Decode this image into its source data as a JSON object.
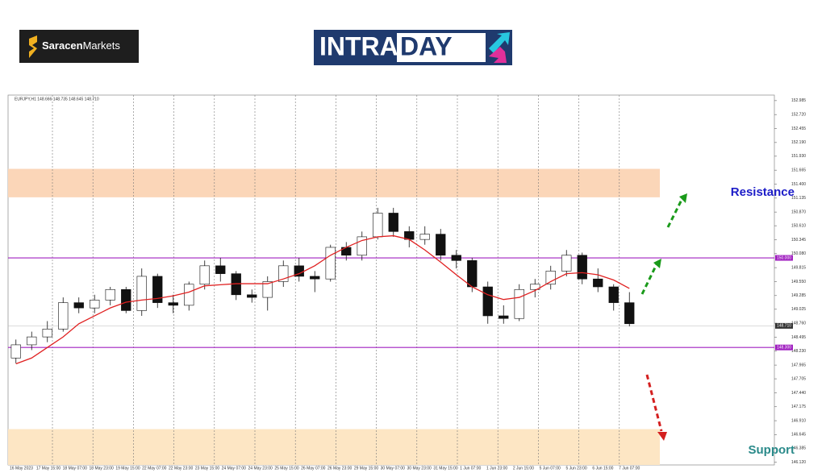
{
  "header": {
    "brand_bold": "Saracen",
    "brand_light": "Markets",
    "logo_left": "INTRA",
    "logo_right": "DAY"
  },
  "chart_data": {
    "type": "candlestick",
    "title": "EURJPY,H1  148.666 148.735 148.645 148.710",
    "ylim": [
      146.07,
      153.09
    ],
    "yticks": [
      152.985,
      {
        "value": 152.72,
        "label": "152.720"
      },
      152.455,
      {
        "value": 152.19,
        "label": "152.190"
      },
      {
        "value": 151.93,
        "label": "151.930"
      },
      151.665,
      {
        "value": 151.4,
        "label": "151.400"
      },
      151.135,
      {
        "value": 150.87,
        "label": "150.870"
      },
      {
        "value": 150.61,
        "label": "150.610"
      },
      150.345,
      {
        "value": 150.08,
        "label": "150.080"
      },
      149.815,
      {
        "value": 149.55,
        "label": "149.550"
      },
      149.285,
      149.025,
      {
        "value": 148.76,
        "label": "148.760"
      },
      148.495,
      {
        "value": 148.23,
        "label": "148.230"
      },
      147.965,
      147.705,
      {
        "value": 147.44,
        "label": "147.440"
      },
      147.175,
      {
        "value": 146.91,
        "label": "146.910"
      },
      146.645,
      146.385,
      {
        "value": 146.12,
        "label": "146.120"
      }
    ],
    "time_labels": [
      "16 May 2023",
      "17 May 15:00",
      "18 May 07:00",
      "18 May 23:00",
      "19 May 15:00",
      "22 May 07:00",
      "22 May 23:00",
      "23 May 15:00",
      "24 May 07:00",
      "24 May 23:00",
      "25 May 15:00",
      "26 May 07:00",
      "26 May 23:00",
      "29 May 15:00",
      "30 May 07:00",
      "30 May 23:00",
      "31 May 15:00",
      "1 Jun 07:00",
      "1 Jun 23:00",
      "2 Jun 15:00",
      "5 Jun 07:00",
      "5 Jun 23:00",
      "6 Jun 15:00",
      "7 Jun 07:00"
    ],
    "open": [
      148.1,
      148.35,
      148.5,
      148.65,
      149.15,
      149.05,
      149.2,
      149.4,
      149.0,
      149.65,
      149.15,
      149.1,
      149.5,
      149.85,
      149.7,
      149.3,
      149.25,
      149.55,
      149.85,
      149.65,
      149.6,
      150.2,
      150.05,
      150.4,
      150.85,
      150.5,
      150.35,
      150.45,
      150.05,
      149.95,
      149.45,
      148.9,
      148.85,
      149.4,
      149.5,
      149.75,
      150.05,
      149.6,
      149.45,
      149.15
    ],
    "high": [
      148.45,
      148.6,
      148.8,
      149.25,
      149.25,
      149.3,
      149.45,
      149.45,
      149.8,
      149.7,
      149.3,
      149.55,
      149.95,
      150.0,
      149.75,
      149.4,
      149.65,
      149.95,
      150.0,
      149.75,
      150.25,
      150.3,
      150.5,
      150.95,
      150.95,
      150.6,
      150.6,
      150.55,
      150.15,
      150.0,
      149.55,
      149.1,
      149.5,
      149.6,
      149.85,
      150.15,
      150.1,
      149.8,
      149.5,
      149.35
    ],
    "low": [
      148.0,
      148.25,
      148.4,
      148.6,
      148.95,
      148.95,
      149.1,
      148.95,
      148.9,
      149.05,
      148.95,
      149.0,
      149.4,
      149.55,
      149.2,
      149.15,
      149.0,
      149.45,
      149.55,
      149.35,
      149.55,
      149.95,
      149.95,
      150.35,
      150.4,
      150.2,
      150.25,
      149.95,
      149.8,
      149.35,
      148.75,
      148.75,
      148.8,
      149.25,
      149.4,
      149.65,
      149.5,
      149.35,
      149.0,
      148.7
    ],
    "close": [
      148.35,
      148.5,
      148.65,
      149.15,
      149.05,
      149.2,
      149.4,
      149.0,
      149.65,
      149.15,
      149.1,
      149.5,
      149.85,
      149.7,
      149.3,
      149.25,
      149.55,
      149.85,
      149.65,
      149.6,
      150.2,
      150.05,
      150.4,
      150.85,
      150.5,
      150.35,
      150.45,
      150.05,
      149.95,
      149.45,
      148.9,
      148.85,
      149.4,
      149.5,
      149.75,
      150.05,
      149.6,
      149.45,
      149.15,
      148.75
    ],
    "moving_average": {
      "color": "#e02020",
      "values": [
        147.99,
        148.1,
        148.3,
        148.5,
        148.75,
        148.9,
        149.05,
        149.16,
        149.2,
        149.23,
        149.28,
        149.35,
        149.47,
        149.49,
        149.51,
        149.51,
        149.51,
        149.6,
        149.7,
        149.85,
        150.05,
        150.2,
        150.33,
        150.4,
        150.42,
        150.35,
        150.15,
        149.92,
        149.68,
        149.45,
        149.3,
        149.21,
        149.25,
        149.38,
        149.55,
        149.7,
        149.72,
        149.68,
        149.58,
        149.42
      ]
    },
    "levels": [
      {
        "value": 150.0,
        "label": "150.000",
        "color": "#a020c0"
      },
      {
        "value": 148.3,
        "label": "148.300",
        "color": "#a020c0"
      },
      {
        "value": 148.71,
        "label": "148.710",
        "color": "#b8b8b8"
      }
    ],
    "zones": [
      {
        "name": "Resistance",
        "range": [
          151.15,
          151.69
        ],
        "color": "#fbd6b8",
        "text_color": "#1c1cc8"
      },
      {
        "name": "Support",
        "range": [
          146.07,
          146.75
        ],
        "color": "#fde6c4",
        "text_color": "#2a8a8a"
      }
    ],
    "grid": true
  }
}
